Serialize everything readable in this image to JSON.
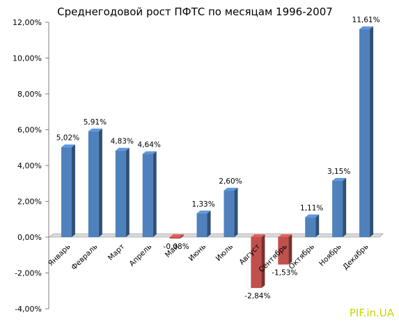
{
  "chart_data": {
    "type": "bar",
    "title": "Среднегодовой рост ПФТС по месяцам 1996-2007",
    "xlabel": "",
    "ylabel": "",
    "ylim": [
      -4,
      12
    ],
    "yticks": [
      -4,
      -2,
      0,
      2,
      4,
      6,
      8,
      10,
      12
    ],
    "ytick_labels": [
      "-4,00%",
      "-2,00%",
      "0,00%",
      "2,00%",
      "4,00%",
      "6,00%",
      "8,00%",
      "10,00%",
      "12,00%"
    ],
    "categories": [
      "Январь",
      "Февраль",
      "Март",
      "Апрель",
      "Май",
      "Июнь",
      "Июль",
      "Август",
      "Сентябрь",
      "Октябрь",
      "Ноябрь",
      "Декабрь"
    ],
    "values": [
      5.02,
      5.91,
      4.83,
      4.64,
      -0.08,
      1.33,
      2.6,
      -2.84,
      -1.53,
      1.11,
      3.15,
      11.61
    ],
    "value_labels": [
      "5,02%",
      "5,91%",
      "4,83%",
      "4,64%",
      "-0,08%",
      "1,33%",
      "2,60%",
      "-2,84%",
      "-1,53%",
      "1,11%",
      "3,15%",
      "11,61%"
    ],
    "colors": {
      "positive": "#4f81bd",
      "negative": "#c0504d"
    },
    "grid": false,
    "legend": "none"
  },
  "watermark": "PIF.in.UA"
}
